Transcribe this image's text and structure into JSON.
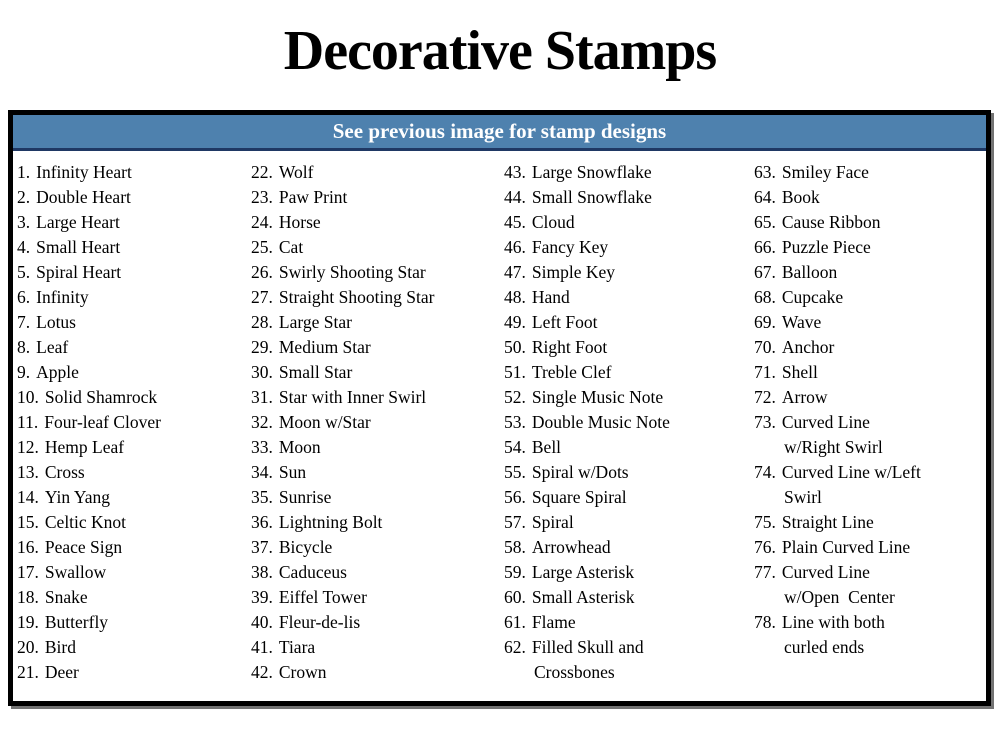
{
  "page": {
    "title": "Decorative Stamps",
    "banner": "See previous image for stamp designs"
  },
  "colors": {
    "banner_background": "#4e81ae",
    "banner_bottom_border": "#1f3864",
    "banner_text": "#ffffff",
    "box_border": "#000000",
    "body_text": "#000000"
  },
  "list": {
    "columns": [
      [
        {
          "num": "1.",
          "name": "Infinity Heart"
        },
        {
          "num": "2.",
          "name": "Double Heart"
        },
        {
          "num": "3.",
          "name": "Large Heart"
        },
        {
          "num": "4.",
          "name": "Small Heart"
        },
        {
          "num": "5.",
          "name": "Spiral Heart"
        },
        {
          "num": "6.",
          "name": "Infinity"
        },
        {
          "num": "7.",
          "name": "Lotus"
        },
        {
          "num": "8.",
          "name": "Leaf"
        },
        {
          "num": "9.",
          "name": "Apple"
        },
        {
          "num": "10.",
          "name": "Solid Shamrock"
        },
        {
          "num": "11.",
          "name": "Four-leaf Clover"
        },
        {
          "num": "12.",
          "name": "Hemp Leaf"
        },
        {
          "num": "13.",
          "name": "Cross"
        },
        {
          "num": "14.",
          "name": "Yin Yang"
        },
        {
          "num": "15.",
          "name": "Celtic Knot"
        },
        {
          "num": "16.",
          "name": "Peace Sign"
        },
        {
          "num": "17.",
          "name": "Swallow"
        },
        {
          "num": "18.",
          "name": "Snake"
        },
        {
          "num": "19.",
          "name": "Butterfly"
        },
        {
          "num": "20.",
          "name": "Bird"
        },
        {
          "num": "21.",
          "name": "Deer"
        }
      ],
      [
        {
          "num": "22.",
          "name": "Wolf"
        },
        {
          "num": "23.",
          "name": "Paw Print"
        },
        {
          "num": "24.",
          "name": "Horse"
        },
        {
          "num": "25.",
          "name": "Cat"
        },
        {
          "num": "26.",
          "name": "Swirly Shooting Star"
        },
        {
          "num": "27.",
          "name": "Straight Shooting Star"
        },
        {
          "num": "28.",
          "name": "Large Star"
        },
        {
          "num": "29.",
          "name": "Medium Star"
        },
        {
          "num": "30.",
          "name": "Small Star"
        },
        {
          "num": "31.",
          "name": "Star with Inner Swirl"
        },
        {
          "num": "32.",
          "name": "Moon w/Star"
        },
        {
          "num": "33.",
          "name": "Moon"
        },
        {
          "num": "34.",
          "name": "Sun"
        },
        {
          "num": "35.",
          "name": "Sunrise"
        },
        {
          "num": "36.",
          "name": "Lightning Bolt"
        },
        {
          "num": "37.",
          "name": "Bicycle"
        },
        {
          "num": "38.",
          "name": "Caduceus"
        },
        {
          "num": "39.",
          "name": "Eiffel Tower"
        },
        {
          "num": "40.",
          "name": "Fleur-de-lis"
        },
        {
          "num": "41.",
          "name": "Tiara"
        },
        {
          "num": "42.",
          "name": "Crown"
        }
      ],
      [
        {
          "num": "43.",
          "name": "Large Snowflake"
        },
        {
          "num": "44.",
          "name": "Small Snowflake"
        },
        {
          "num": "45.",
          "name": "Cloud"
        },
        {
          "num": "46.",
          "name": "Fancy Key"
        },
        {
          "num": "47.",
          "name": "Simple Key"
        },
        {
          "num": "48.",
          "name": "Hand"
        },
        {
          "num": "49.",
          "name": "Left Foot"
        },
        {
          "num": "50.",
          "name": "Right Foot"
        },
        {
          "num": "51.",
          "name": "Treble Clef"
        },
        {
          "num": "52.",
          "name": "Single Music Note"
        },
        {
          "num": "53.",
          "name": "Double Music Note"
        },
        {
          "num": "54.",
          "name": "Bell"
        },
        {
          "num": "55.",
          "name": "Spiral w/Dots"
        },
        {
          "num": "56.",
          "name": "Square Spiral"
        },
        {
          "num": "57.",
          "name": "Spiral"
        },
        {
          "num": "58.",
          "name": "Arrowhead"
        },
        {
          "num": "59.",
          "name": "Large Asterisk"
        },
        {
          "num": "60.",
          "name": "Small Asterisk"
        },
        {
          "num": "61.",
          "name": "Flame"
        },
        {
          "num": "62.",
          "name": "Filled Skull and\nCrossbones"
        }
      ],
      [
        {
          "num": "63.",
          "name": "Smiley Face"
        },
        {
          "num": "64.",
          "name": "Book"
        },
        {
          "num": "65.",
          "name": "Cause Ribbon"
        },
        {
          "num": "66.",
          "name": "Puzzle Piece"
        },
        {
          "num": "67.",
          "name": "Balloon"
        },
        {
          "num": "68.",
          "name": "Cupcake"
        },
        {
          "num": "69.",
          "name": "Wave"
        },
        {
          "num": "70.",
          "name": "Anchor"
        },
        {
          "num": "71.",
          "name": "Shell"
        },
        {
          "num": "72.",
          "name": "Arrow"
        },
        {
          "num": "73.",
          "name": "Curved Line\nw/Right Swirl"
        },
        {
          "num": "74.",
          "name": "Curved Line w/Left\nSwirl"
        },
        {
          "num": "75.",
          "name": "Straight Line"
        },
        {
          "num": "76.",
          "name": "Plain Curved Line"
        },
        {
          "num": "77.",
          "name": "Curved Line\nw/Open  Center"
        },
        {
          "num": "78.",
          "name": "Line with both\ncurled ends"
        }
      ]
    ]
  }
}
